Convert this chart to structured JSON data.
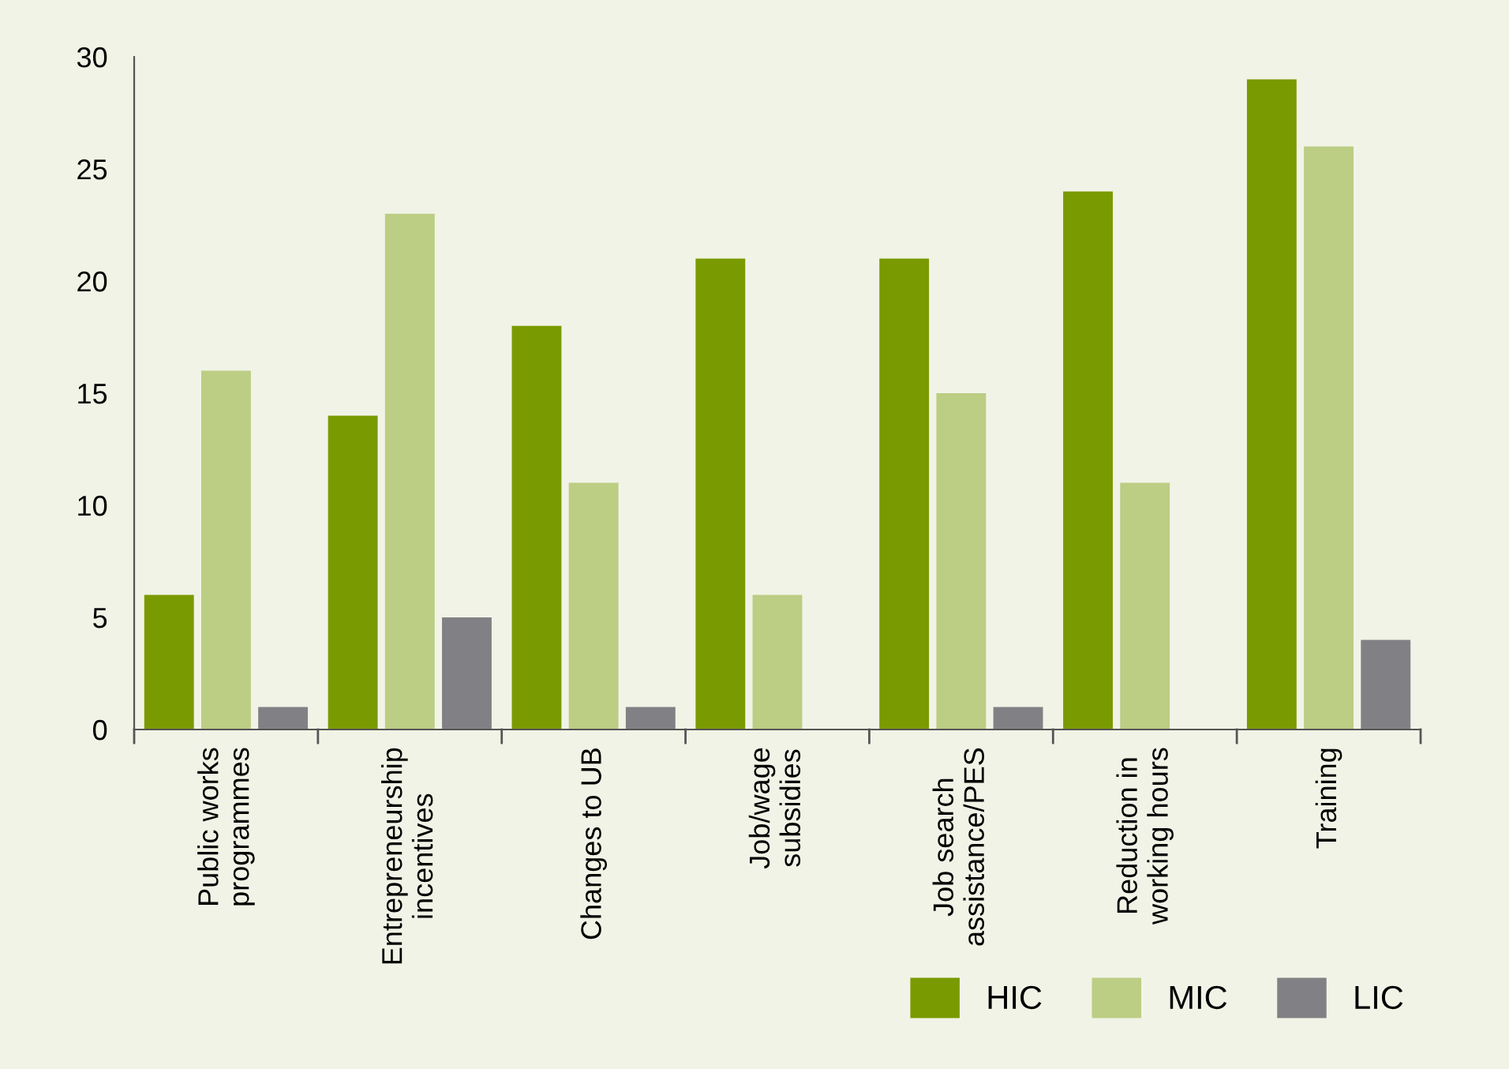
{
  "chart_data": {
    "type": "bar",
    "categories": [
      "Public works\nprogrammes",
      "Entrepreneurship\nincentives",
      "Changes to UB",
      "Job/wage\nsubsidies",
      "Job search\nassistance/PES",
      "Reduction in\nworking hours",
      "Training"
    ],
    "series": [
      {
        "name": "HIC",
        "color": "#7a9a01",
        "values": [
          6,
          14,
          18,
          21,
          21,
          24,
          29
        ]
      },
      {
        "name": "MIC",
        "color": "#bccd84",
        "values": [
          16,
          23,
          11,
          6,
          15,
          11,
          26
        ]
      },
      {
        "name": "LIC",
        "color": "#818185",
        "values": [
          1,
          5,
          1,
          0,
          1,
          0,
          4
        ]
      }
    ],
    "ylim": [
      0,
      30
    ],
    "yticks": [
      0,
      5,
      10,
      15,
      20,
      25,
      30
    ],
    "grid": false,
    "legend": "bottom right"
  }
}
